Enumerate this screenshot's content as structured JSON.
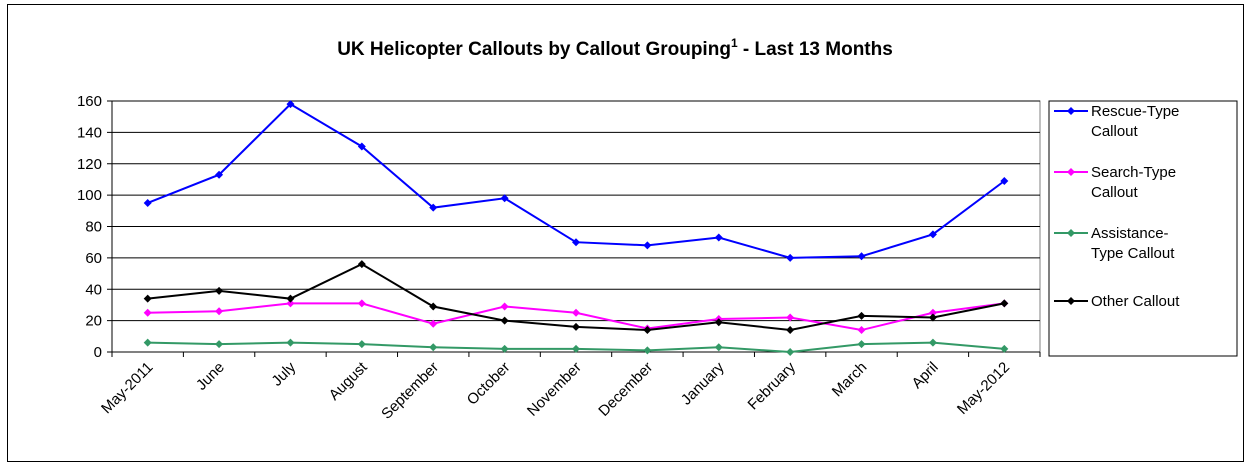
{
  "chart_data": {
    "type": "line",
    "title": "UK Helicopter Callouts by Callout Grouping",
    "title_superscript": "1",
    "title_suffix": " - Last 13 Months",
    "categories": [
      "May-2011",
      "June",
      "July",
      "August",
      "September",
      "October",
      "November",
      "December",
      "January",
      "February",
      "March",
      "April",
      "May-2012"
    ],
    "ylim": [
      0,
      160
    ],
    "yticks": [
      0,
      20,
      40,
      60,
      80,
      100,
      120,
      140,
      160
    ],
    "grid": true,
    "legend_position": "right",
    "series": [
      {
        "name_lines": [
          "Rescue-Type",
          "Callout"
        ],
        "color": "#0000ff",
        "values": [
          95,
          113,
          158,
          131,
          92,
          98,
          70,
          68,
          73,
          60,
          61,
          75,
          109
        ]
      },
      {
        "name_lines": [
          "Search-Type",
          "Callout"
        ],
        "color": "#ff00ff",
        "values": [
          25,
          26,
          31,
          31,
          18,
          29,
          25,
          15,
          21,
          22,
          14,
          25,
          31
        ]
      },
      {
        "name_lines": [
          "Assistance-",
          "Type Callout"
        ],
        "color": "#339966",
        "values": [
          6,
          5,
          6,
          5,
          3,
          2,
          2,
          1,
          3,
          0,
          5,
          6,
          2
        ]
      },
      {
        "name_lines": [
          "Other Callout"
        ],
        "color": "#000000",
        "values": [
          34,
          39,
          34,
          56,
          29,
          20,
          16,
          14,
          19,
          14,
          23,
          22,
          31
        ]
      }
    ]
  }
}
